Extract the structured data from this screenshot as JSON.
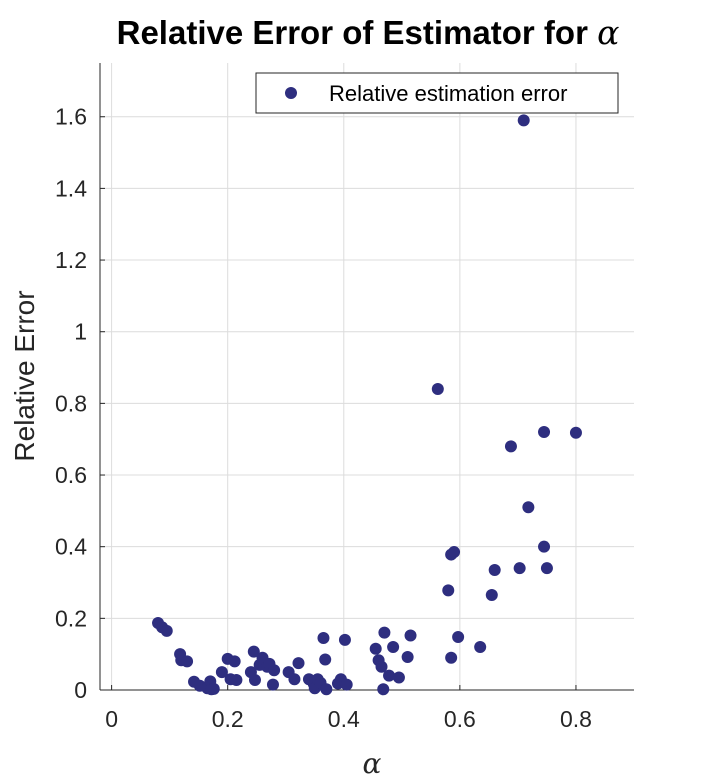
{
  "chart_data": {
    "type": "scatter",
    "title": "Relative Error of Estimator for ",
    "title_symbol": "α",
    "xlabel": "α",
    "ylabel": "Relative Error",
    "xlim": [
      -0.02,
      0.9
    ],
    "ylim": [
      0,
      1.75
    ],
    "xticks": [
      0,
      0.2,
      0.4,
      0.6,
      0.8
    ],
    "xtick_labels": [
      "0",
      "0.2",
      "0.4",
      "0.6",
      "0.8"
    ],
    "yticks": [
      0,
      0.2,
      0.4,
      0.6,
      0.8,
      1,
      1.2,
      1.4,
      1.6
    ],
    "ytick_labels": [
      "0",
      "0.2",
      "0.4",
      "0.6",
      "0.8",
      "1",
      "1.2",
      "1.4",
      "1.6"
    ],
    "grid": true,
    "legend_position": "top-right",
    "marker_color": "#2e2e7f",
    "series": [
      {
        "name": "Relative estimation error",
        "points": [
          [
            0.08,
            0.187
          ],
          [
            0.087,
            0.175
          ],
          [
            0.095,
            0.165
          ],
          [
            0.118,
            0.1
          ],
          [
            0.12,
            0.083
          ],
          [
            0.13,
            0.08
          ],
          [
            0.142,
            0.023
          ],
          [
            0.152,
            0.012
          ],
          [
            0.165,
            0.005
          ],
          [
            0.17,
            0.024
          ],
          [
            0.172,
            0.002
          ],
          [
            0.176,
            0.003
          ],
          [
            0.19,
            0.05
          ],
          [
            0.2,
            0.087
          ],
          [
            0.205,
            0.03
          ],
          [
            0.212,
            0.08
          ],
          [
            0.215,
            0.028
          ],
          [
            0.24,
            0.05
          ],
          [
            0.245,
            0.107
          ],
          [
            0.247,
            0.028
          ],
          [
            0.255,
            0.07
          ],
          [
            0.26,
            0.09
          ],
          [
            0.268,
            0.065
          ],
          [
            0.272,
            0.073
          ],
          [
            0.278,
            0.015
          ],
          [
            0.28,
            0.055
          ],
          [
            0.305,
            0.05
          ],
          [
            0.315,
            0.03
          ],
          [
            0.322,
            0.075
          ],
          [
            0.34,
            0.03
          ],
          [
            0.348,
            0.018
          ],
          [
            0.35,
            0.005
          ],
          [
            0.355,
            0.03
          ],
          [
            0.36,
            0.02
          ],
          [
            0.365,
            0.145
          ],
          [
            0.368,
            0.085
          ],
          [
            0.37,
            0.002
          ],
          [
            0.39,
            0.018
          ],
          [
            0.395,
            0.03
          ],
          [
            0.402,
            0.14
          ],
          [
            0.405,
            0.015
          ],
          [
            0.455,
            0.115
          ],
          [
            0.46,
            0.083
          ],
          [
            0.465,
            0.065
          ],
          [
            0.468,
            0.002
          ],
          [
            0.47,
            0.16
          ],
          [
            0.478,
            0.04
          ],
          [
            0.485,
            0.12
          ],
          [
            0.495,
            0.035
          ],
          [
            0.51,
            0.092
          ],
          [
            0.515,
            0.152
          ],
          [
            0.562,
            0.84
          ],
          [
            0.58,
            0.278
          ],
          [
            0.585,
            0.378
          ],
          [
            0.585,
            0.09
          ],
          [
            0.59,
            0.385
          ],
          [
            0.597,
            0.148
          ],
          [
            0.635,
            0.12
          ],
          [
            0.655,
            0.265
          ],
          [
            0.66,
            0.335
          ],
          [
            0.688,
            0.68
          ],
          [
            0.703,
            0.34
          ],
          [
            0.71,
            1.59
          ],
          [
            0.718,
            0.51
          ],
          [
            0.745,
            0.72
          ],
          [
            0.745,
            0.4
          ],
          [
            0.75,
            0.34
          ],
          [
            0.8,
            0.718
          ]
        ]
      }
    ]
  }
}
